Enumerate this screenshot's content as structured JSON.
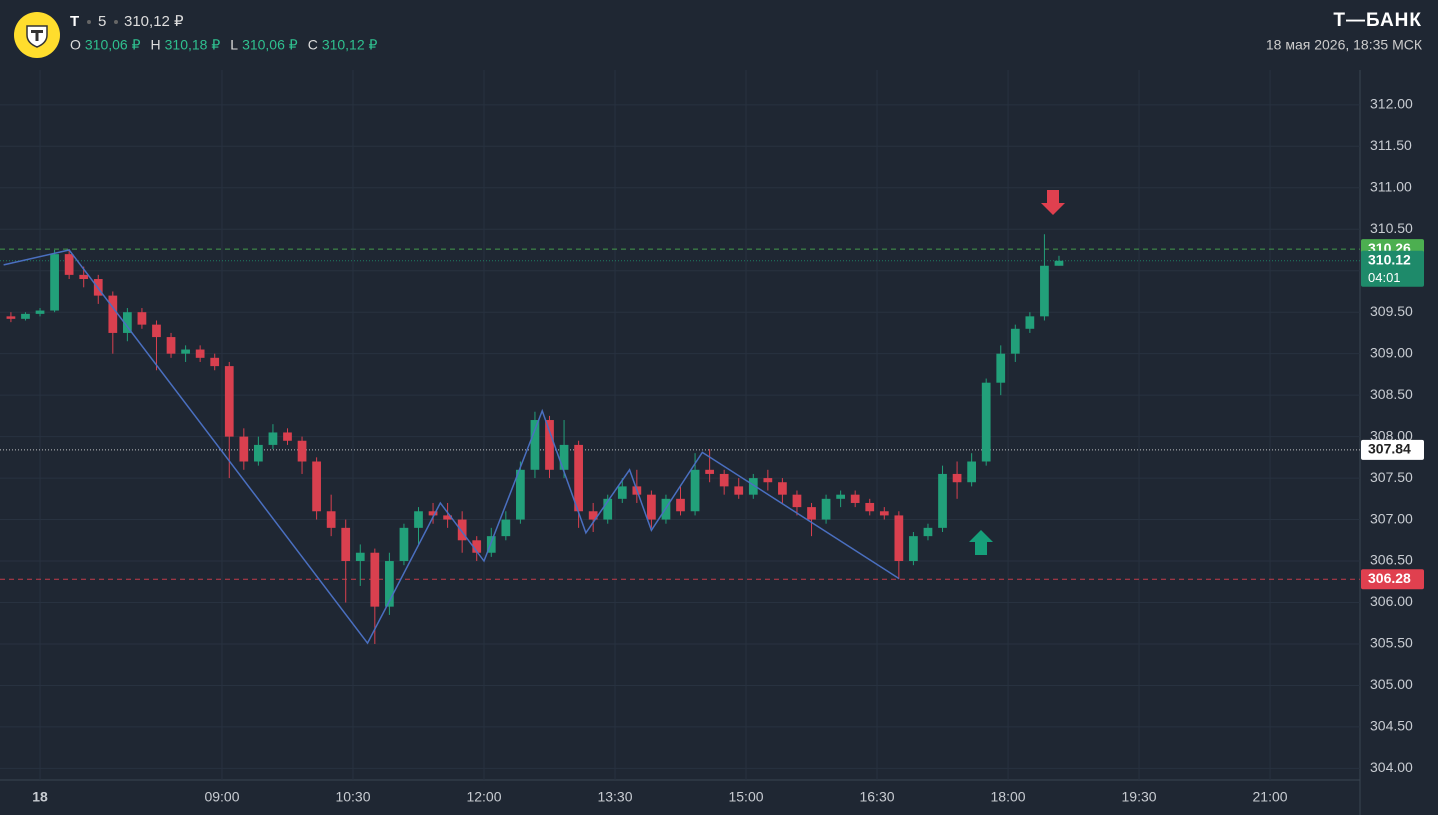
{
  "header": {
    "ticker": "T",
    "interval": "5",
    "price": "310,12 ₽",
    "ohlc": [
      {
        "key": "O",
        "value": "310,06 ₽"
      },
      {
        "key": "H",
        "value": "310,18 ₽"
      },
      {
        "key": "L",
        "value": "310,06 ₽"
      },
      {
        "key": "C",
        "value": "310,12 ₽"
      }
    ],
    "brand": "Т—БАНК",
    "datetime": "18 мая 2026, 18:35 МСК"
  },
  "chart_data": {
    "type": "candlestick",
    "xlim": [
      387.5,
      1321.8
    ],
    "ylim": [
      303.86,
      312.42
    ],
    "xticks": [
      {
        "value": 415,
        "label": "18"
      },
      {
        "value": 540,
        "label": "09:00"
      },
      {
        "value": 630,
        "label": "10:30"
      },
      {
        "value": 720,
        "label": "12:00"
      },
      {
        "value": 810,
        "label": "13:30"
      },
      {
        "value": 900,
        "label": "15:00"
      },
      {
        "value": 990,
        "label": "16:30"
      },
      {
        "value": 1080,
        "label": "18:00"
      },
      {
        "value": 1170,
        "label": "19:30"
      },
      {
        "value": 1260,
        "label": "21:00"
      }
    ],
    "yticks": [
      {
        "value": 304,
        "label": "304.00"
      },
      {
        "value": 304.5,
        "label": "304.50"
      },
      {
        "value": 305,
        "label": "305.00"
      },
      {
        "value": 305.5,
        "label": "305.50"
      },
      {
        "value": 306,
        "label": "306.00"
      },
      {
        "value": 306.5,
        "label": "306.50"
      },
      {
        "value": 307,
        "label": "307.00"
      },
      {
        "value": 307.5,
        "label": "307.50"
      },
      {
        "value": 308,
        "label": "308.00"
      },
      {
        "value": 308.5,
        "label": "308.50"
      },
      {
        "value": 309,
        "label": "309.00"
      },
      {
        "value": 309.5,
        "label": "309.50"
      },
      {
        "value": 310,
        "label": "310.00"
      },
      {
        "value": 310.5,
        "label": "310.50"
      },
      {
        "value": 311,
        "label": "311.00"
      },
      {
        "value": 311.5,
        "label": "311.50"
      },
      {
        "value": 312,
        "label": "312.00"
      }
    ],
    "grid": true,
    "up_color": "#22a07a",
    "down_color": "#d9404f",
    "candles": {
      "x": [
        395,
        405,
        415,
        425,
        435,
        445,
        455,
        465,
        475,
        485,
        495,
        505,
        515,
        525,
        535,
        545,
        555,
        565,
        575,
        585,
        595,
        605,
        615,
        625,
        635,
        645,
        655,
        665,
        675,
        685,
        695,
        705,
        715,
        725,
        735,
        745,
        755,
        765,
        775,
        785,
        795,
        805,
        815,
        825,
        835,
        845,
        855,
        865,
        875,
        885,
        895,
        905,
        915,
        925,
        935,
        945,
        955,
        965,
        975,
        985,
        995,
        1005,
        1015,
        1025,
        1035,
        1045,
        1055,
        1065,
        1075,
        1085,
        1095,
        1105,
        1115
      ],
      "open": [
        309.45,
        309.42,
        309.48,
        309.52,
        310.2,
        309.95,
        309.9,
        309.7,
        309.25,
        309.5,
        309.35,
        309.2,
        309.0,
        309.05,
        308.95,
        308.85,
        308.0,
        307.7,
        307.9,
        308.05,
        307.95,
        307.7,
        307.1,
        306.9,
        306.5,
        306.6,
        305.95,
        306.5,
        306.9,
        307.1,
        307.05,
        307.0,
        306.75,
        306.6,
        306.8,
        307.0,
        307.6,
        308.2,
        307.6,
        307.9,
        307.1,
        307.0,
        307.25,
        307.4,
        307.3,
        307.0,
        307.25,
        307.1,
        307.6,
        307.55,
        307.4,
        307.3,
        307.5,
        307.45,
        307.3,
        307.15,
        307.0,
        307.25,
        307.3,
        307.2,
        307.1,
        307.05,
        306.5,
        306.8,
        306.9,
        307.55,
        307.45,
        307.7,
        308.65,
        309.0,
        309.3,
        309.45,
        310.06
      ],
      "high": [
        309.5,
        309.5,
        309.55,
        310.25,
        310.26,
        310.05,
        309.95,
        309.75,
        309.55,
        309.55,
        309.4,
        309.25,
        309.1,
        309.1,
        309.0,
        308.9,
        308.1,
        308.0,
        308.15,
        308.1,
        308.0,
        307.75,
        307.3,
        307.0,
        306.7,
        306.65,
        306.6,
        306.95,
        307.15,
        307.2,
        307.2,
        307.1,
        306.8,
        306.9,
        307.1,
        307.7,
        308.3,
        308.25,
        308.2,
        307.95,
        307.2,
        307.3,
        307.5,
        307.6,
        307.35,
        307.3,
        307.4,
        307.8,
        307.85,
        307.6,
        307.5,
        307.55,
        307.6,
        307.5,
        307.35,
        307.2,
        307.3,
        307.35,
        307.35,
        307.25,
        307.15,
        307.1,
        306.85,
        306.95,
        307.65,
        307.7,
        307.8,
        308.7,
        309.1,
        309.35,
        309.5,
        310.44,
        310.18
      ],
      "low": [
        309.38,
        309.4,
        309.45,
        309.5,
        309.9,
        309.8,
        309.6,
        309.0,
        309.15,
        309.3,
        308.8,
        308.95,
        308.9,
        308.9,
        308.8,
        307.5,
        307.6,
        307.65,
        307.85,
        307.9,
        307.55,
        307.0,
        306.8,
        306.0,
        306.2,
        305.5,
        305.85,
        306.45,
        306.7,
        306.95,
        306.9,
        306.6,
        306.5,
        306.55,
        306.75,
        306.95,
        307.5,
        307.5,
        307.5,
        306.9,
        306.85,
        306.95,
        307.2,
        307.2,
        306.9,
        306.95,
        307.05,
        307.05,
        307.45,
        307.3,
        307.25,
        307.25,
        307.35,
        307.2,
        307.05,
        306.8,
        306.95,
        307.15,
        307.15,
        307.05,
        307.0,
        306.28,
        306.45,
        306.75,
        306.85,
        307.25,
        307.4,
        307.65,
        308.5,
        308.9,
        309.25,
        309.4,
        310.06
      ],
      "close": [
        309.42,
        309.48,
        309.52,
        310.2,
        309.95,
        309.9,
        309.7,
        309.25,
        309.5,
        309.35,
        309.2,
        309.0,
        309.05,
        308.95,
        308.85,
        308.0,
        307.7,
        307.9,
        308.05,
        307.95,
        307.7,
        307.1,
        306.9,
        306.5,
        306.6,
        305.95,
        306.5,
        306.9,
        307.1,
        307.05,
        307.0,
        306.75,
        306.6,
        306.8,
        307.0,
        307.6,
        308.2,
        307.6,
        307.9,
        307.1,
        307.0,
        307.25,
        307.4,
        307.3,
        307.0,
        307.25,
        307.1,
        307.6,
        307.55,
        307.4,
        307.3,
        307.5,
        307.45,
        307.3,
        307.15,
        307.0,
        307.25,
        307.3,
        307.2,
        307.1,
        307.05,
        306.5,
        306.8,
        306.9,
        307.55,
        307.45,
        307.7,
        308.65,
        309.0,
        309.3,
        309.45,
        310.06,
        310.12
      ]
    },
    "zigzag": {
      "color": "#4a6fc0",
      "x": [
        390,
        435,
        640,
        690,
        720,
        760,
        790,
        820,
        835,
        870,
        1005
      ],
      "y": [
        310.07,
        310.25,
        305.51,
        307.2,
        306.5,
        308.31,
        306.84,
        307.6,
        306.87,
        307.81,
        306.29
      ]
    },
    "price_lines": [
      {
        "value": 310.26,
        "color": "#4caf50",
        "style": "dashed"
      },
      {
        "value": 310.12,
        "color": "#1e8a6a",
        "style": "dotted",
        "countdown": "04:01"
      },
      {
        "value": 307.84,
        "color": "#dddddd",
        "style": "dotted"
      },
      {
        "value": 306.28,
        "color": "#e0404f",
        "style": "dashed"
      }
    ]
  }
}
